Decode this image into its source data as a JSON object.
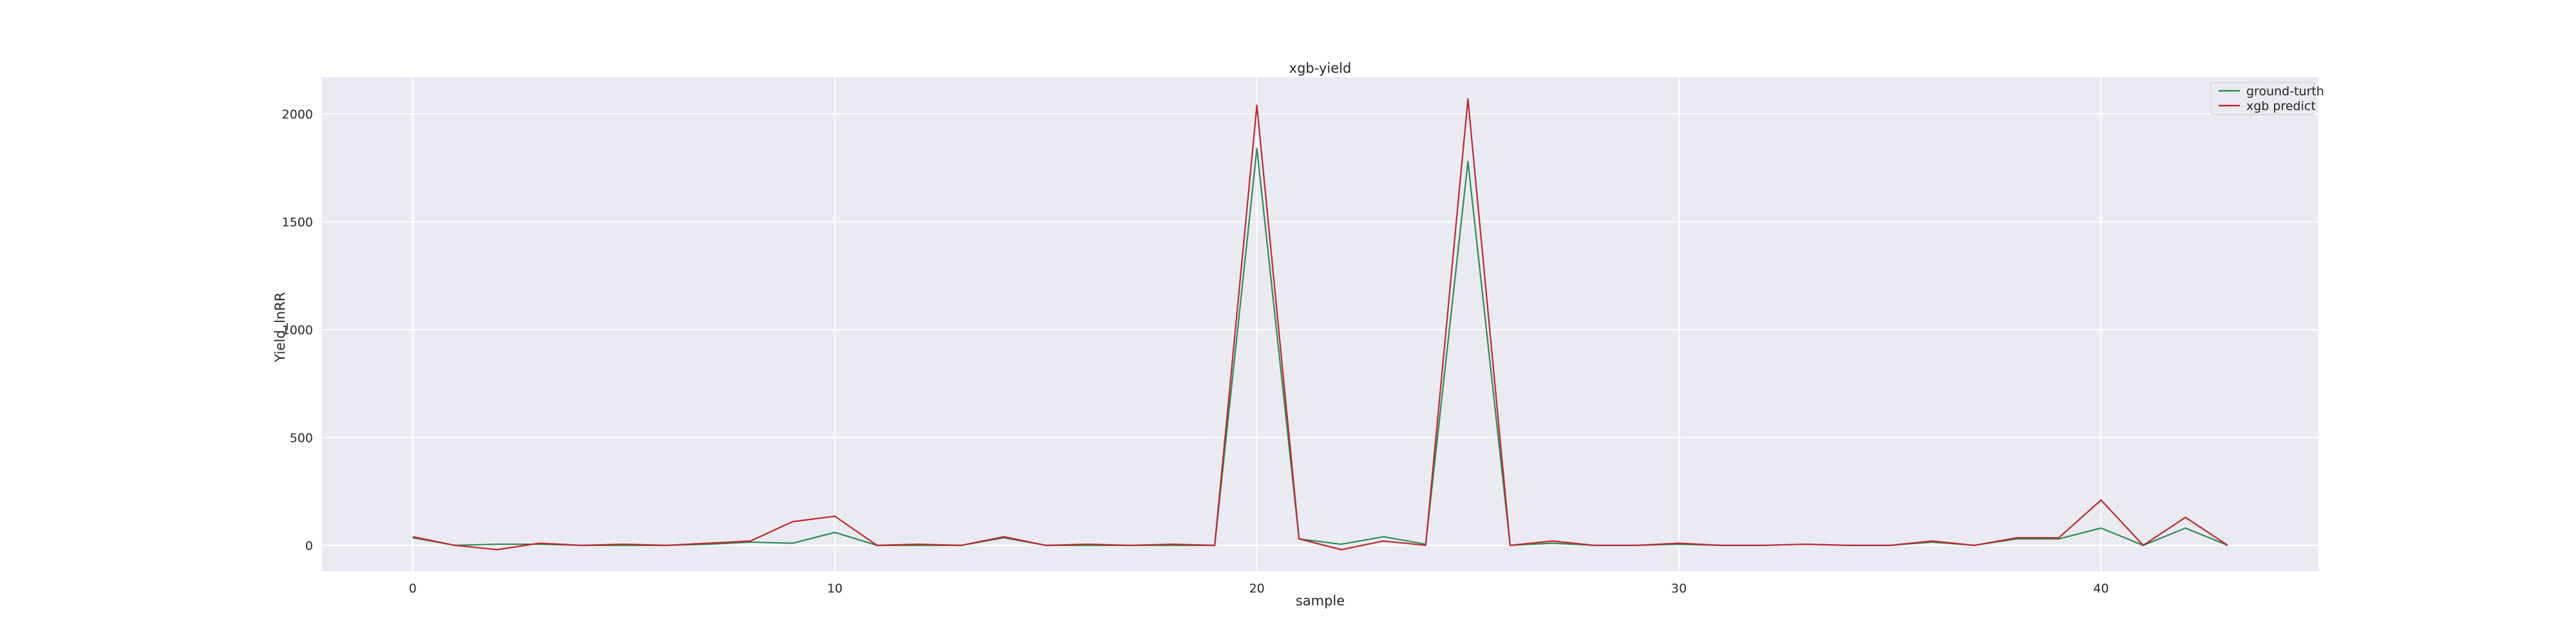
{
  "chart_data": {
    "type": "line",
    "title": "xgb-yield",
    "xlabel": "sample",
    "ylabel": "Yield_lnRR",
    "xlim": [
      -2.15,
      45.15
    ],
    "ylim": [
      -120,
      2170
    ],
    "xticks": [
      0,
      10,
      20,
      30,
      40
    ],
    "yticks": [
      0,
      500,
      1000,
      1500,
      2000
    ],
    "grid": true,
    "legend_position": "top-right",
    "x": [
      0,
      1,
      2,
      3,
      4,
      5,
      6,
      7,
      8,
      9,
      10,
      11,
      12,
      13,
      14,
      15,
      16,
      17,
      18,
      19,
      20,
      21,
      22,
      23,
      24,
      25,
      26,
      27,
      28,
      29,
      30,
      31,
      32,
      33,
      34,
      35,
      36,
      37,
      38,
      39,
      40,
      41,
      42,
      43
    ],
    "series": [
      {
        "name": "ground-turth",
        "color": "#2e8b57",
        "values": [
          35,
          0,
          5,
          5,
          0,
          0,
          0,
          5,
          15,
          10,
          60,
          0,
          0,
          0,
          35,
          0,
          0,
          0,
          0,
          0,
          1840,
          30,
          5,
          40,
          5,
          1780,
          0,
          10,
          0,
          0,
          5,
          0,
          0,
          5,
          0,
          0,
          15,
          0,
          30,
          30,
          80,
          0,
          80,
          0
        ]
      },
      {
        "name": "xgb predict",
        "color": "#c1272d",
        "values": [
          40,
          0,
          -20,
          10,
          0,
          5,
          0,
          10,
          20,
          110,
          135,
          0,
          5,
          0,
          40,
          0,
          5,
          0,
          5,
          0,
          2040,
          30,
          -20,
          20,
          0,
          2070,
          0,
          20,
          0,
          0,
          10,
          0,
          0,
          5,
          0,
          0,
          20,
          0,
          35,
          35,
          210,
          0,
          130,
          0
        ]
      }
    ]
  }
}
